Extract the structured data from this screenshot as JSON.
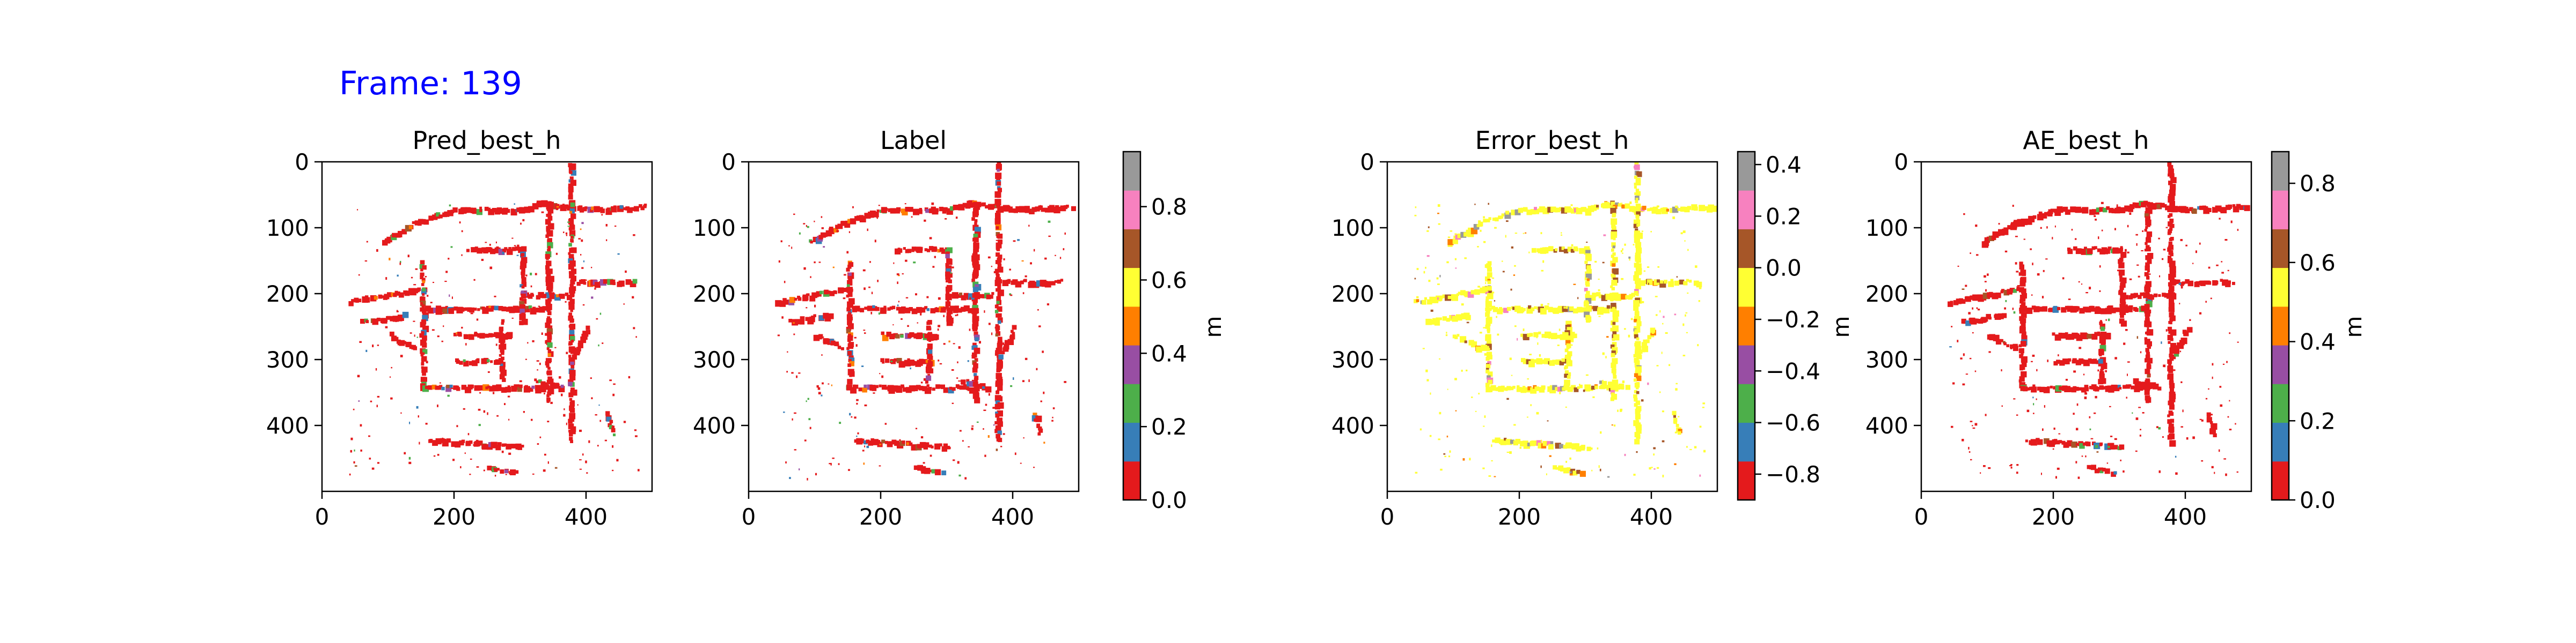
{
  "figure": {
    "frame_label": "Frame: 139",
    "frame_label_color": "#0000ff"
  },
  "palette": [
    "#e41a1c",
    "#377eb8",
    "#4daf4a",
    "#984ea3",
    "#ff7f00",
    "#ffff33",
    "#a65628",
    "#f781bf",
    "#999999"
  ],
  "chart_data": [
    {
      "type": "heatmap",
      "name": "pred",
      "title": "Pred_best_h",
      "xlim": [
        0,
        500
      ],
      "ylim": [
        500,
        0
      ],
      "xticks": [
        0,
        200,
        400
      ],
      "yticks": [
        0,
        100,
        200,
        300,
        400
      ],
      "dominant_value_index": 0,
      "description_of_content": "water-depth map on a street grid"
    },
    {
      "type": "heatmap",
      "name": "label",
      "title": "Label",
      "xlim": [
        0,
        500
      ],
      "ylim": [
        500,
        0
      ],
      "xticks": [
        0,
        200,
        400
      ],
      "yticks": [
        0,
        100,
        200,
        300,
        400
      ],
      "dominant_value_index": 0,
      "colorbar": {
        "label": "m",
        "range": [
          0.0,
          0.95
        ],
        "ticks": [
          0.0,
          0.2,
          0.4,
          0.6,
          0.8
        ],
        "tick_labels": [
          "0.0",
          "0.2",
          "0.4",
          "0.6",
          "0.8"
        ]
      }
    },
    {
      "type": "heatmap",
      "name": "error",
      "title": "Error_best_h",
      "xlim": [
        0,
        500
      ],
      "ylim": [
        500,
        0
      ],
      "xticks": [
        0,
        200,
        400
      ],
      "yticks": [
        0,
        100,
        200,
        300,
        400
      ],
      "dominant_value_index": 5,
      "colorbar": {
        "label": "m",
        "range": [
          -0.9,
          0.45
        ],
        "ticks": [
          -0.8,
          -0.6,
          -0.4,
          -0.2,
          0.0,
          0.2,
          0.4
        ],
        "tick_labels": [
          "−0.8",
          "−0.6",
          "−0.4",
          "−0.2",
          "0.0",
          "0.2",
          "0.4"
        ]
      }
    },
    {
      "type": "heatmap",
      "name": "ae",
      "title": "AE_best_h",
      "xlim": [
        0,
        500
      ],
      "ylim": [
        500,
        0
      ],
      "xticks": [
        0,
        200,
        400
      ],
      "yticks": [
        0,
        100,
        200,
        300,
        400
      ],
      "dominant_value_index": 0,
      "colorbar": {
        "label": "m",
        "range": [
          0.0,
          0.88
        ],
        "ticks": [
          0.0,
          0.2,
          0.4,
          0.6,
          0.8
        ],
        "tick_labels": [
          "0.0",
          "0.2",
          "0.4",
          "0.6",
          "0.8"
        ]
      }
    }
  ]
}
